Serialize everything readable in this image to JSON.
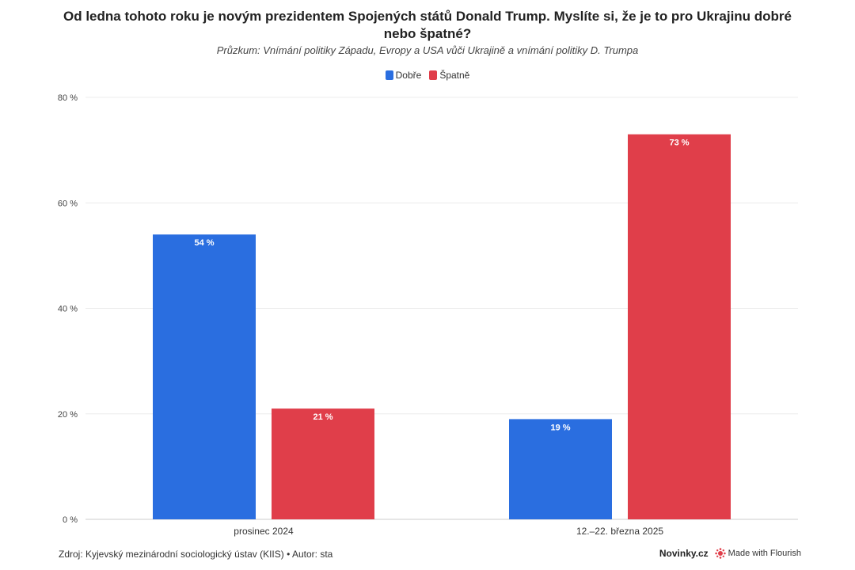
{
  "chart_data": {
    "type": "bar",
    "title": "Od ledna tohoto roku je novým prezidentem Spojených států Donald Trump. Myslíte si, že je to pro Ukrajinu dobré nebo špatné?",
    "subtitle": "Průzkum: Vnímání politiky Západu, Evropy a USA vůči Ukrajině a vnímání politiky D. Trumpa",
    "categories": [
      "prosinec 2024",
      "12.–22. března 2025"
    ],
    "series": [
      {
        "name": "Dobře",
        "values": [
          54,
          19
        ],
        "color": "#2a6ee0"
      },
      {
        "name": "Špatně",
        "values": [
          21,
          73
        ],
        "color": "#e03e4a"
      }
    ],
    "ylim": [
      0,
      80
    ],
    "yticks": [
      0,
      20,
      40,
      60,
      80
    ],
    "y_unit": " %",
    "grid": true,
    "legend_position": "top-center",
    "xlabel": "",
    "ylabel": ""
  },
  "footer": {
    "source": "Zdroj: Kyjevský mezinárodní sociologický ústav (KIIS) • Autor: sta",
    "brand": "Novinky.cz",
    "made_with": "Made with Flourish"
  }
}
